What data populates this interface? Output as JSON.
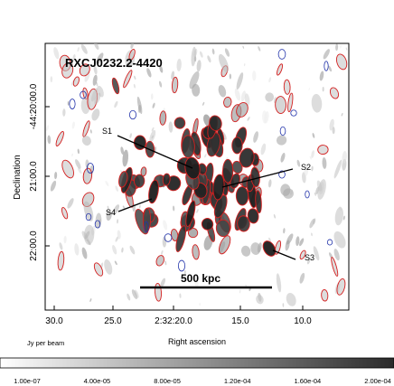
{
  "chart_data": {
    "type": "heatmap",
    "title": "RXCJ0232.2-4420",
    "xlabel": "Right ascension",
    "ylabel": "Declination",
    "x_ticks": [
      "30.0",
      "25.0",
      "2:32:20.0",
      "15.0",
      "10.0"
    ],
    "y_ticks": [
      "-44:20:00.0",
      "21:00.0",
      "22:00.0"
    ],
    "colorbar": {
      "label": "Jy per beam",
      "ticks": [
        "1.00e-07",
        "4.00e-05",
        "8.00e-05",
        "1.20e-04",
        "1.60e-04",
        "2.00e-04"
      ],
      "values": [
        1e-07,
        4e-05,
        8e-05,
        0.00012,
        0.00016,
        0.0002
      ]
    },
    "scalebar": {
      "label": "500 kpc"
    },
    "sources": [
      {
        "name": "S1"
      },
      {
        "name": "S2"
      },
      {
        "name": "S3"
      },
      {
        "name": "S4"
      }
    ],
    "colors": {
      "contour": "#d42020",
      "negative_contour": "#2233aa",
      "emission": "#333333"
    }
  }
}
